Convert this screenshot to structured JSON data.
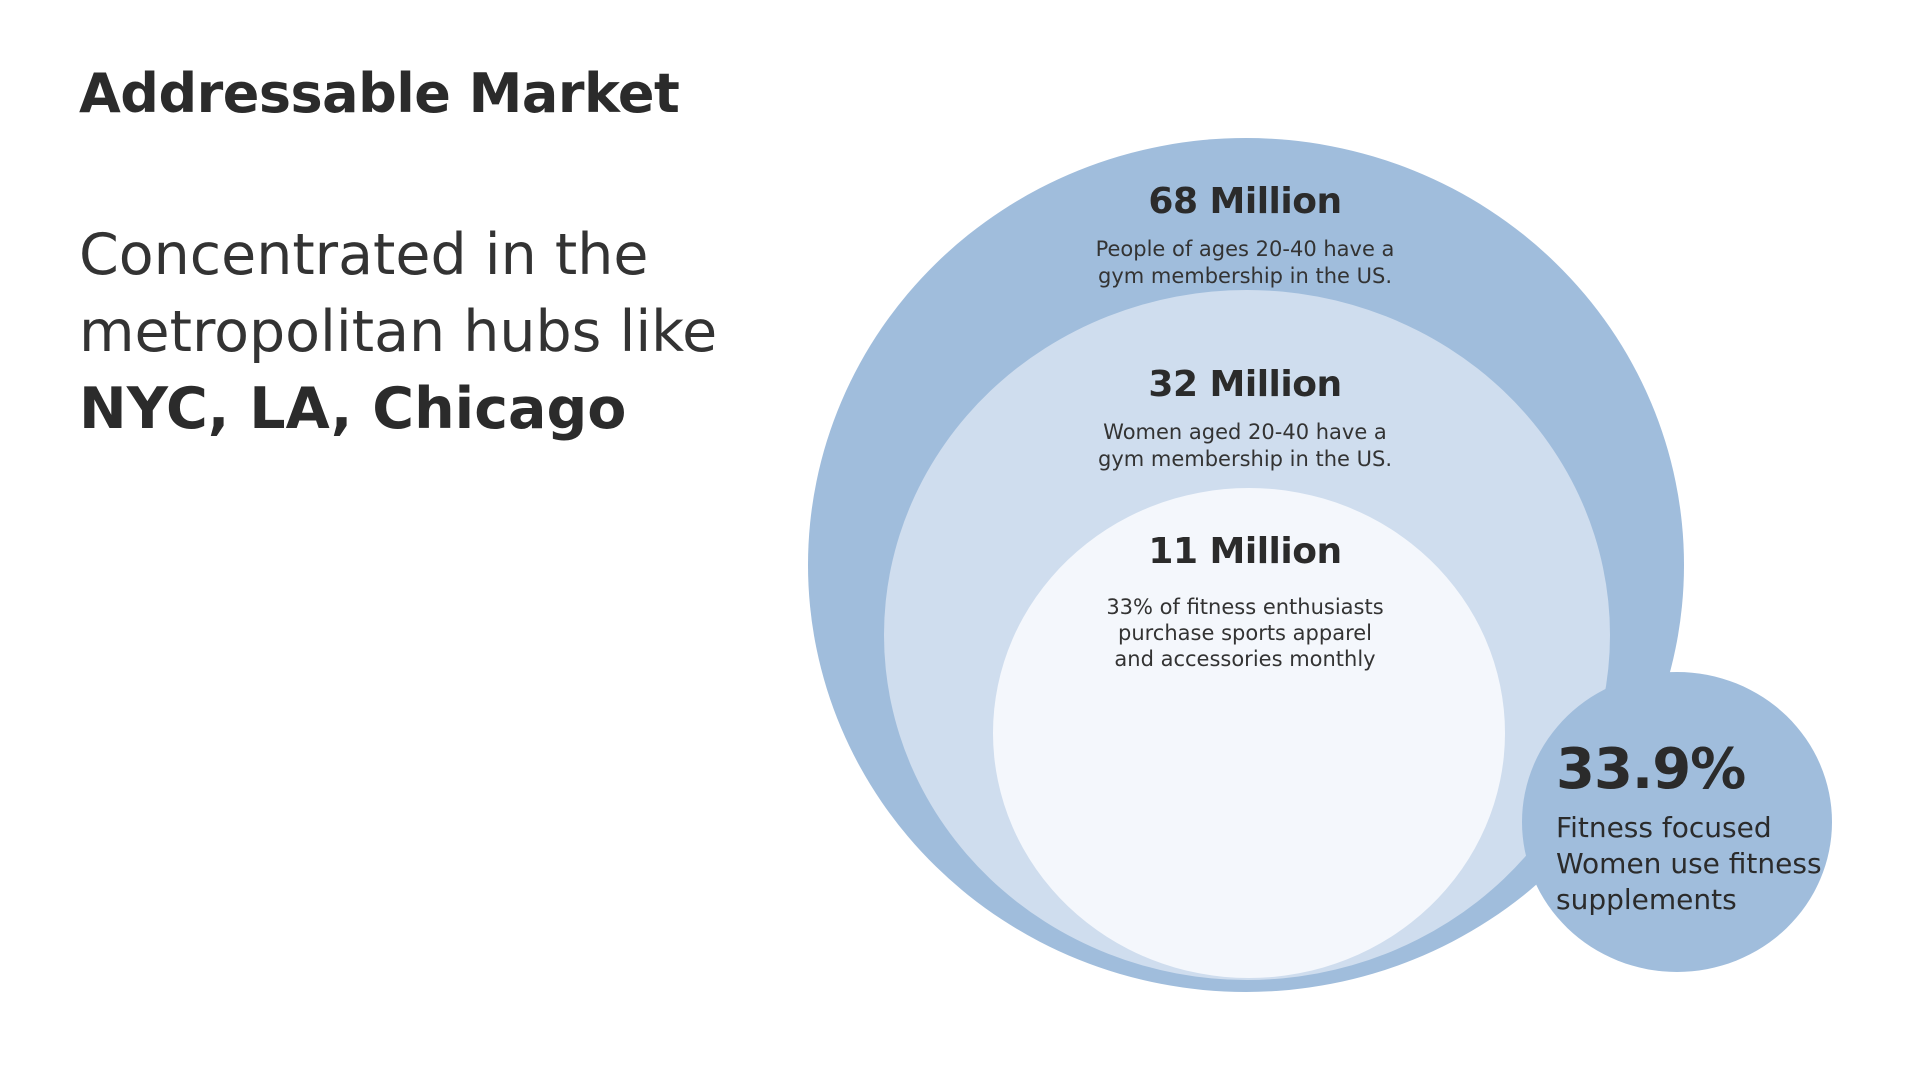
{
  "title": "Addressable Market",
  "subtitle": {
    "line1": "Concentrated in the",
    "line2": "metropolitan hubs like",
    "emphasis": "NYC, LA, Chicago"
  },
  "circles": {
    "outer": {
      "value": "68 Million",
      "desc_lines": [
        "People of ages 20-40 have a",
        "gym membership in the US."
      ]
    },
    "middle": {
      "value": "32 Million",
      "desc_lines": [
        "Women aged 20-40 have a",
        "gym membership in the US."
      ]
    },
    "inner": {
      "value": "11 Million",
      "desc_lines": [
        "33% of fitness enthusiasts",
        "purchase sports apparel",
        "and accessories monthly"
      ]
    },
    "side": {
      "value": "33.9%",
      "desc_lines": [
        "Fitness focused",
        "Women use fitness",
        "supplements"
      ]
    }
  },
  "colors": {
    "outer": "#a0bddc",
    "middle": "#cfddee",
    "inner": "#f4f7fc",
    "side": "#a0bddc",
    "text": "#2b2b2b"
  }
}
